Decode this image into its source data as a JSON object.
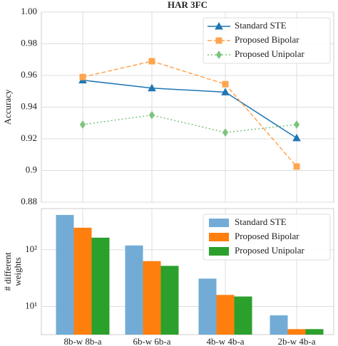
{
  "chart_data": [
    {
      "type": "line",
      "title": "HAR 3FC",
      "ylabel": "Accuracy",
      "categories": [
        null,
        null,
        null,
        null
      ],
      "ylim": [
        0.88,
        1.0
      ],
      "yticks": [
        0.88,
        0.9,
        0.92,
        0.94,
        0.96,
        0.98,
        {
          "value": 1.0,
          "label": "1.00"
        }
      ],
      "grid": true,
      "legend": "upper right",
      "series": [
        {
          "name": "Standard STE",
          "color": "#1f77b4",
          "marker": "triangle",
          "linestyle": "solid",
          "values": [
            0.957,
            0.952,
            0.9495,
            0.9205
          ]
        },
        {
          "name": "Proposed Bipolar",
          "color": "#ffa54f",
          "marker": "square",
          "linestyle": "dashed",
          "values": [
            0.959,
            0.969,
            0.9545,
            0.9025
          ]
        },
        {
          "name": "Proposed Unipolar",
          "color": "#7cc47c",
          "marker": "diamond",
          "linestyle": "dotted",
          "values": [
            0.929,
            0.935,
            0.924,
            0.929
          ]
        }
      ]
    },
    {
      "type": "bar",
      "ylabel": [
        "# different",
        "weights"
      ],
      "log": true,
      "categories": [
        "8b-w 8b-a",
        "6b-w 6b-a",
        "4b-w 4b-a",
        "2b-w 4b-a"
      ],
      "ylim": [
        3.2,
        530
      ],
      "yticks": [
        {
          "value": 10,
          "label": "10¹"
        },
        {
          "value": 100,
          "label": "10²"
        }
      ],
      "grid": true,
      "legend": "upper right",
      "series": [
        {
          "name": "Standard STE",
          "color": "#72acd6",
          "values": [
            410,
            119,
            31,
            7
          ]
        },
        {
          "name": "Proposed Bipolar",
          "color": "#ff7f0e",
          "values": [
            244,
            63,
            16,
            4
          ]
        },
        {
          "name": "Proposed Unipolar",
          "color": "#2ca02c",
          "values": [
            163,
            52,
            15,
            4
          ]
        }
      ]
    }
  ]
}
